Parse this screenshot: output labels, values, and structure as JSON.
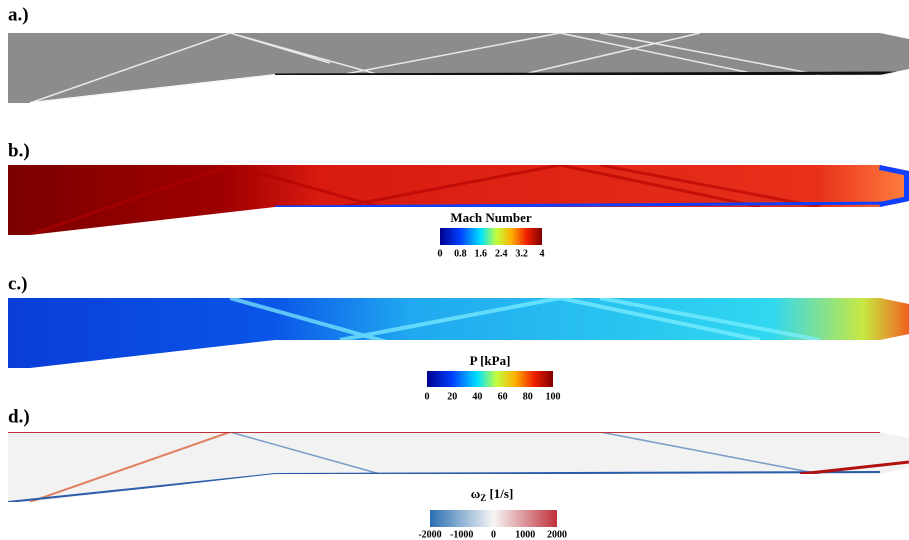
{
  "panels": [
    {
      "label": "a.)"
    },
    {
      "label": "b.)",
      "colorbar": {
        "title": "Mach Number",
        "ticks": [
          "0",
          "0.8",
          "1.6",
          "2.4",
          "3.2",
          "4"
        ]
      }
    },
    {
      "label": "c.)",
      "colorbar": {
        "title": "P [kPa]",
        "ticks": [
          "0",
          "20",
          "40",
          "60",
          "80",
          "100"
        ]
      }
    },
    {
      "label": "d.)",
      "colorbar": {
        "symbol": "ω",
        "subscript": "Z",
        "unit": " [1/s]",
        "ticks": [
          "-2000",
          "-1000",
          "0",
          "1000",
          "2000"
        ]
      }
    }
  ]
}
